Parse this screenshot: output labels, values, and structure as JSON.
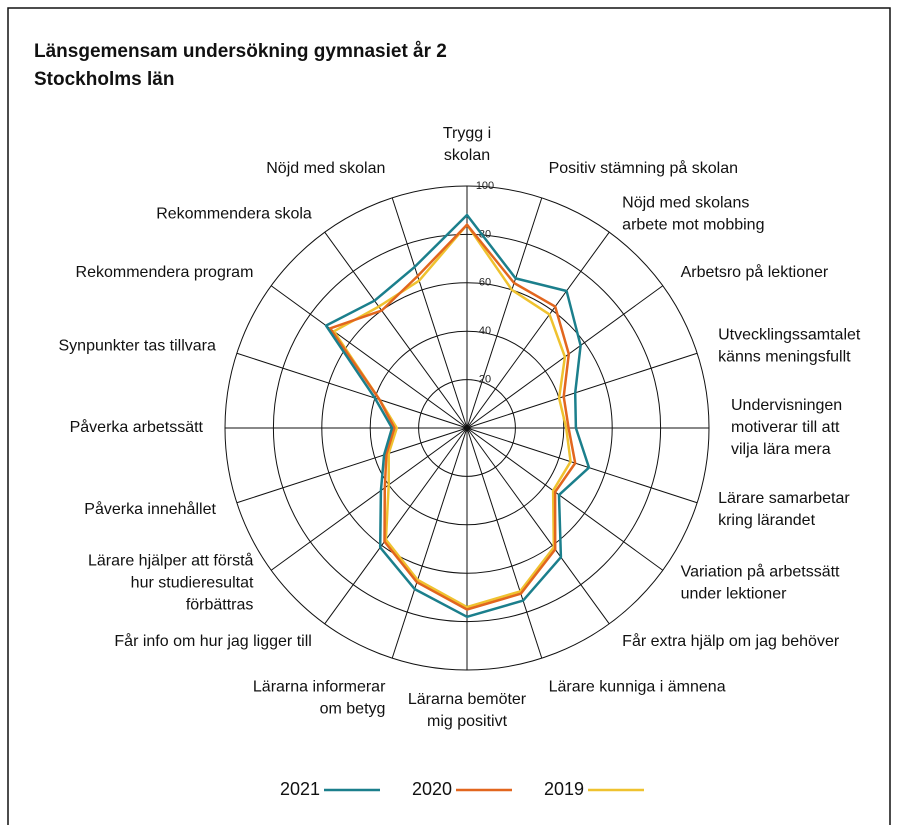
{
  "chart_data": {
    "type": "radar",
    "title": "Länsgemensam undersökning gymnasiet år 2",
    "subtitle": "Stockholms län",
    "categories": [
      [
        "Trygg i",
        "skolan"
      ],
      [
        "Positiv stämning på skolan"
      ],
      [
        "Nöjd med skolans",
        "arbete mot mobbing"
      ],
      [
        "Arbetsro på lektioner"
      ],
      [
        "Utvecklingssamtalet",
        "känns meningsfullt"
      ],
      [
        "Undervisningen",
        "motiverar till att",
        "vilja lära mera"
      ],
      [
        "Lärare samarbetar",
        "kring lärandet"
      ],
      [
        "Variation på arbetssätt",
        "under lektioner"
      ],
      [
        "Får extra hjälp om jag behöver"
      ],
      [
        "Lärare kunniga i ämnena"
      ],
      [
        "Lärarna bemöter",
        "mig positivt"
      ],
      [
        "Lärarna informerar",
        "om betyg"
      ],
      [
        "Får info om hur jag ligger till"
      ],
      [
        "Lärare hjälper att förstå",
        "hur studieresultat",
        "förbättras"
      ],
      [
        "Påverka innehållet"
      ],
      [
        "Påverka arbetssätt"
      ],
      [
        "Synpunkter tas tillvara"
      ],
      [
        "Rekommendera program"
      ],
      [
        "Rekommendera skola"
      ],
      [
        "Nöjd med skolan"
      ]
    ],
    "series": [
      {
        "name": "2021",
        "color": "#1b7f8c",
        "values": [
          88,
          65,
          70,
          58,
          47,
          45,
          53,
          47,
          66,
          75,
          78,
          70,
          61,
          44,
          36,
          31,
          40,
          72,
          65,
          70
        ]
      },
      {
        "name": "2020",
        "color": "#e2661e",
        "values": [
          84,
          63,
          62,
          52,
          42,
          42,
          47,
          45,
          62,
          72,
          75,
          67,
          58,
          42,
          35,
          30,
          38,
          70,
          60,
          66
        ]
      },
      {
        "name": "2019",
        "color": "#efc22f",
        "values": [
          84,
          60,
          58,
          50,
          40,
          41,
          45,
          44,
          61,
          71,
          74,
          66,
          57,
          40,
          34,
          29,
          38,
          68,
          62,
          64
        ]
      }
    ],
    "ylim": [
      0,
      100
    ],
    "yticks": [
      20,
      40,
      60,
      80,
      100
    ],
    "grid": true
  }
}
